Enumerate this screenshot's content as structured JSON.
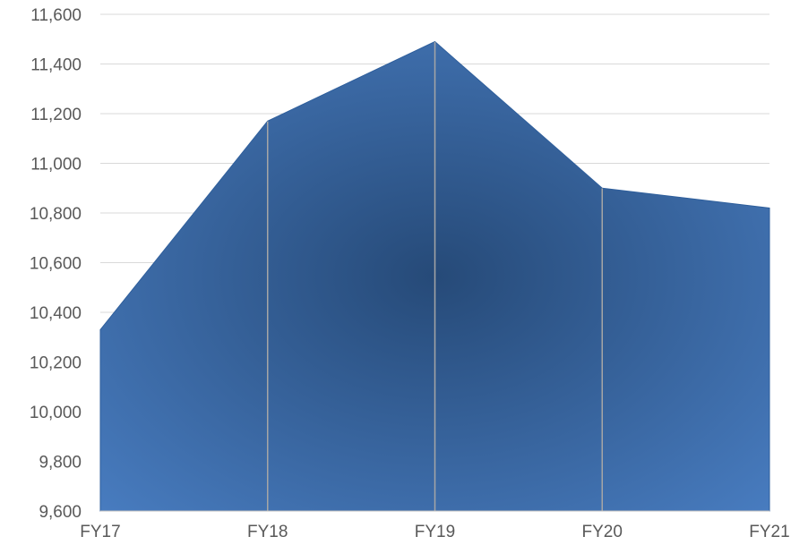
{
  "chart_data": {
    "type": "area",
    "categories": [
      "FY17",
      "FY18",
      "FY19",
      "FY20",
      "FY21"
    ],
    "series": [
      {
        "values": [
          10330,
          11170,
          11490,
          10900,
          10820
        ]
      }
    ],
    "ylim": [
      9600,
      11600
    ],
    "yticks": [
      9600,
      9800,
      10000,
      10200,
      10400,
      10600,
      10800,
      11000,
      11200,
      11400,
      11600
    ],
    "ytick_labels": [
      "9,600",
      "9,800",
      "10,000",
      "10,200",
      "10,400",
      "10,600",
      "10,800",
      "11,000",
      "11,200",
      "11,400",
      "11,600"
    ],
    "grid": true,
    "colors": {
      "fill_center": "#264a78",
      "fill_edge": "#4a7fc4",
      "outline": "#2f5f9c"
    }
  }
}
